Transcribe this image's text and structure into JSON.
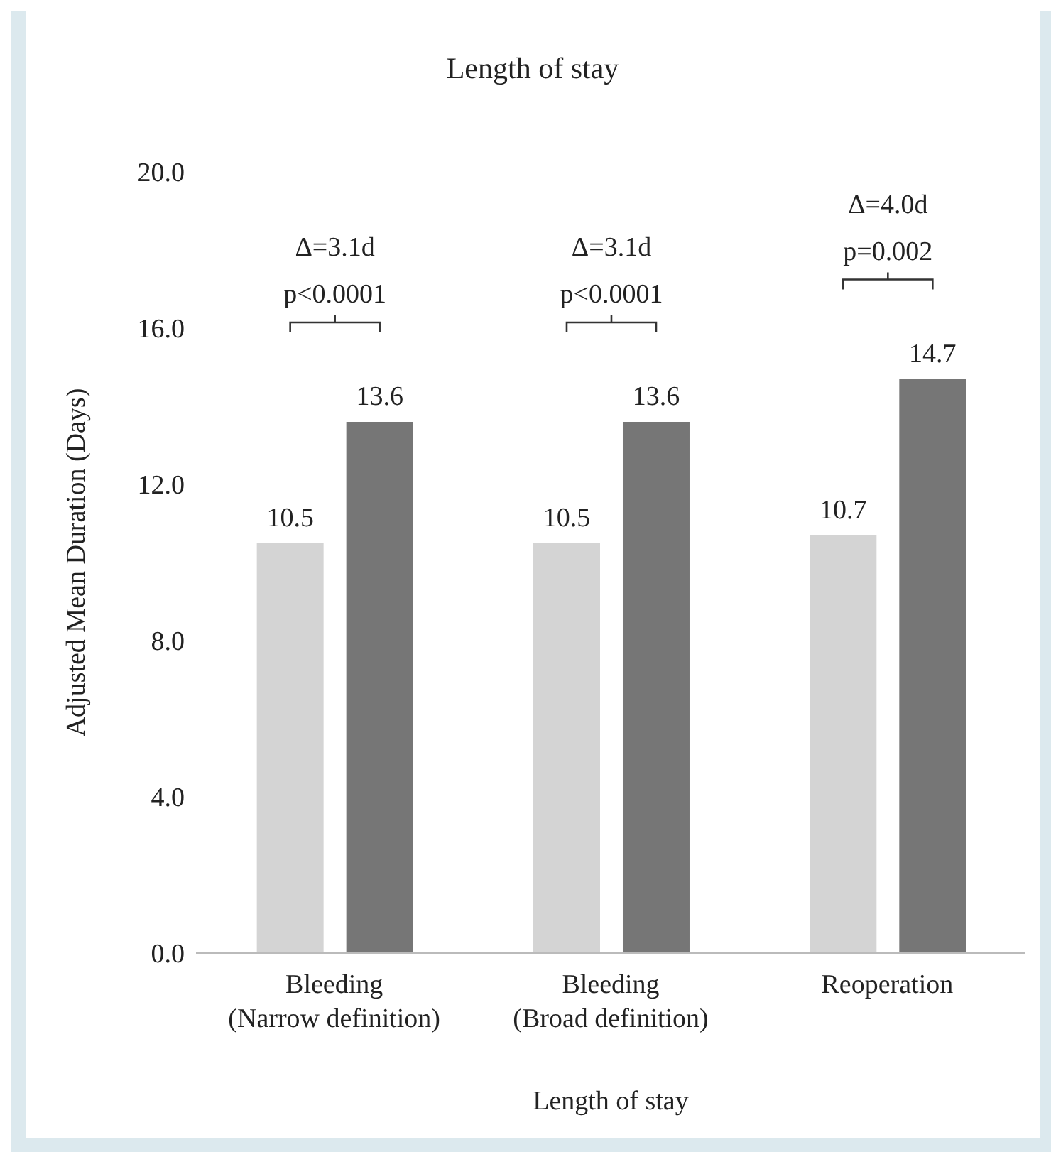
{
  "chart_data": {
    "type": "bar",
    "title": "Length of stay",
    "xlabel": "Length of stay",
    "ylabel": "Adjusted Mean Duration (Days)",
    "categories": [
      "Bleeding (Narrow definition)",
      "Bleeding (Broad definition)",
      "Reoperation"
    ],
    "series": [
      {
        "color": "#d4d4d4",
        "values": [
          10.5,
          10.5,
          10.7
        ]
      },
      {
        "color": "#767676",
        "values": [
          13.6,
          13.6,
          14.7
        ]
      }
    ],
    "ylim": [
      0,
      20
    ],
    "yticks": [
      {
        "value": 0,
        "label": "0.0"
      },
      {
        "value": 4,
        "label": "4.0"
      },
      {
        "value": 8,
        "label": "8.0"
      },
      {
        "value": 12,
        "label": "12.0"
      },
      {
        "value": 16,
        "label": "16.0"
      },
      {
        "value": 20,
        "label": "20.0"
      }
    ],
    "data_labels": true,
    "grid": false,
    "legend": false,
    "annotations": [
      "Δ=3.1d\np<0.0001",
      "Δ=3.1d\np<0.0001",
      "Δ=4.0d\np=0.002"
    ]
  }
}
